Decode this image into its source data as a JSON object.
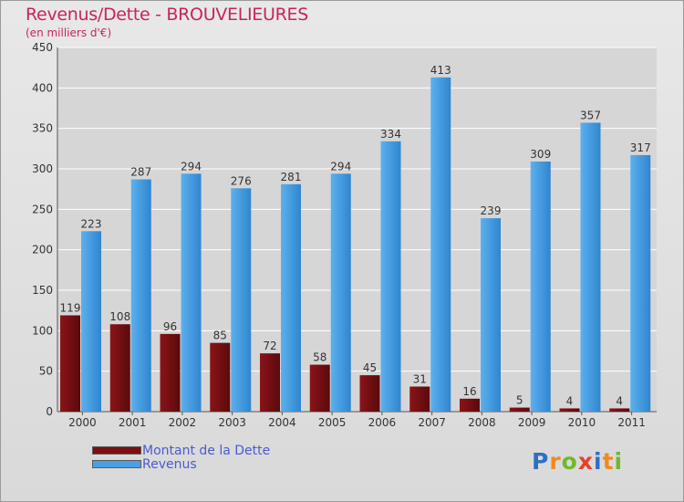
{
  "colors": {
    "debt": "#7a1014",
    "revenue": "#4aa0e4",
    "title": "#c8245e",
    "legend_text": "#4a5ad0",
    "grid": "#ffffff",
    "axis_text": "#333333"
  },
  "chart_data": {
    "type": "bar",
    "title": "Revenus/Dette - BROUVELIEURES",
    "subtitle": "(en milliers d'€)",
    "xlabel": "",
    "ylabel": "",
    "ylim": [
      0,
      450
    ],
    "yticks": [
      0,
      50,
      100,
      150,
      200,
      250,
      300,
      350,
      400,
      450
    ],
    "grid": true,
    "legend_position": "bottom-left",
    "categories": [
      "2000",
      "2001",
      "2002",
      "2003",
      "2004",
      "2005",
      "2006",
      "2007",
      "2008",
      "2009",
      "2010",
      "2011"
    ],
    "series": [
      {
        "name": "Montant de la Dette",
        "color": "#7a1014",
        "values": [
          119,
          108,
          96,
          85,
          72,
          58,
          45,
          31,
          16,
          5,
          4,
          4
        ]
      },
      {
        "name": "Revenus",
        "color": "#4aa0e4",
        "values": [
          223,
          287,
          294,
          276,
          281,
          294,
          334,
          413,
          239,
          309,
          357,
          317
        ]
      }
    ]
  },
  "legend": {
    "items": [
      {
        "label": "Montant de la Dette",
        "color": "#7a1014"
      },
      {
        "label": "Revenus",
        "color": "#4aa0e4"
      }
    ]
  },
  "logo": {
    "text": "Proxiti",
    "letters": [
      "P",
      "r",
      "o",
      "x",
      "i",
      "t",
      "i"
    ],
    "letter_colors": [
      "#2e6fc4",
      "#f08a1c",
      "#6fb92d",
      "#e7402a",
      "#2e6fc4",
      "#f08a1c",
      "#6fb92d"
    ]
  }
}
